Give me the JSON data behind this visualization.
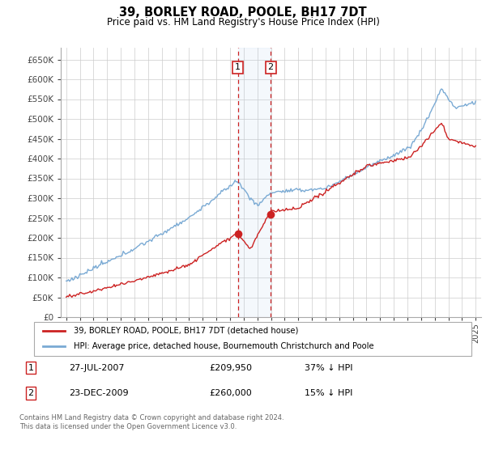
{
  "title": "39, BORLEY ROAD, POOLE, BH17 7DT",
  "subtitle": "Price paid vs. HM Land Registry's House Price Index (HPI)",
  "ylim": [
    0,
    680000
  ],
  "yticks": [
    0,
    50000,
    100000,
    150000,
    200000,
    250000,
    300000,
    350000,
    400000,
    450000,
    500000,
    550000,
    600000,
    650000
  ],
  "ytick_labels": [
    "£0",
    "£50K",
    "£100K",
    "£150K",
    "£200K",
    "£250K",
    "£300K",
    "£350K",
    "£400K",
    "£450K",
    "£500K",
    "£550K",
    "£600K",
    "£650K"
  ],
  "hpi_color": "#7aaad4",
  "price_color": "#cc2222",
  "transaction1_date": 2007.57,
  "transaction1_price": 209950,
  "transaction1_label": "1",
  "transaction2_date": 2009.98,
  "transaction2_price": 260000,
  "transaction2_label": "2",
  "legend_line1": "39, BORLEY ROAD, POOLE, BH17 7DT (detached house)",
  "legend_line2": "HPI: Average price, detached house, Bournemouth Christchurch and Poole",
  "table_row1": [
    "1",
    "27-JUL-2007",
    "£209,950",
    "37% ↓ HPI"
  ],
  "table_row2": [
    "2",
    "23-DEC-2009",
    "£260,000",
    "15% ↓ HPI"
  ],
  "footer": "Contains HM Land Registry data © Crown copyright and database right 2024.\nThis data is licensed under the Open Government Licence v3.0.",
  "background_color": "#ffffff",
  "grid_color": "#cccccc",
  "xlim_left": 1994.6,
  "xlim_right": 2025.4
}
